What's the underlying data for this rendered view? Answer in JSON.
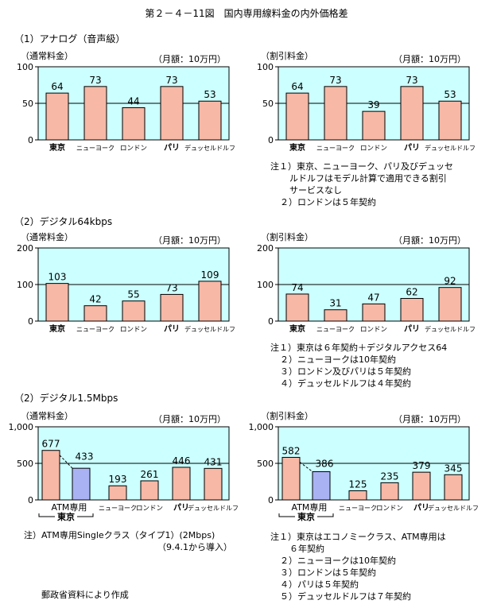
{
  "page_title": "第２－４－11図　国内専用線料金の内外価格差",
  "section_labels": [
    "（1）アナログ（音声級）",
    "（2）デジタル64kbps",
    "（2）デジタル1.5Mbps"
  ],
  "atm_label": "ATM専用",
  "atm_group_label": "東京",
  "source": "郵政省資料により作成",
  "colors": {
    "bar": "#f7b8a6",
    "atm_bar": "#a9b3f4",
    "plot_bg": "#ccffff",
    "line": "#000000"
  },
  "notes": {
    "analog_discount": [
      "注１）東京、ニューヨーク、パリ及びデュッセ",
      "ルドルフはモデル計算で適用できる割引",
      "サービスなし",
      "２）ロンドンは５年契約"
    ],
    "d64_discount": [
      "注１）東京は６年契約＋デジタルアクセス64",
      "２）ニューヨークは10年契約",
      "３）ロンドン及びパリは５年契約",
      "４）デュッセルドルフは４年契約"
    ],
    "d15_regular": [
      "注）ATM専用Singleクラス（タイプ1）(2Mbps)",
      "（9.4.1から導入）"
    ],
    "d15_discount": [
      "注１）東京はエコノミークラス、ATM専用は",
      "６年契約",
      "２）ニューヨークは10年契約",
      "３）ロンドンは５年契約",
      "４）パリは５年契約",
      "５）デュッセルドルフは７年契約"
    ]
  },
  "chart_data": [
    {
      "type": "bar",
      "label": "（通常料金）",
      "unit": "（月額：10万円）",
      "categories": [
        "東京",
        "ニューヨーク",
        "ロンドン",
        "パリ",
        "デュッセルドルフ"
      ],
      "values": [
        64,
        73,
        44,
        73,
        53
      ],
      "ylim": [
        0,
        100
      ],
      "yticks": [
        "0",
        "50",
        "100"
      ],
      "ytick_values": [
        0,
        50,
        100
      ],
      "hline": 50
    },
    {
      "type": "bar",
      "label": "（割引料金）",
      "unit": "（月額：10万円）",
      "categories": [
        "東京",
        "ニューヨーク",
        "ロンドン",
        "パリ",
        "デュッセルドルフ"
      ],
      "values": [
        64,
        73,
        39,
        73,
        53
      ],
      "ylim": [
        0,
        100
      ],
      "yticks": [
        "0",
        "50",
        "100"
      ],
      "ytick_values": [
        0,
        50,
        100
      ],
      "hline": 50
    },
    {
      "type": "bar",
      "label": "（通常料金）",
      "unit": "（月額：10万円）",
      "categories": [
        "東京",
        "ニューヨーク",
        "ロンドン",
        "パリ",
        "デュッセルドルフ"
      ],
      "values": [
        103,
        42,
        55,
        73,
        109
      ],
      "ylim": [
        0,
        200
      ],
      "yticks": [
        "0",
        "100",
        "200"
      ],
      "ytick_values": [
        0,
        100,
        200
      ],
      "hline": 100
    },
    {
      "type": "bar",
      "label": "（割引料金）",
      "unit": "（月額：10万円）",
      "categories": [
        "東京",
        "ニューヨーク",
        "ロンドン",
        "パリ",
        "デュッセルドルフ"
      ],
      "values": [
        74,
        31,
        47,
        62,
        92
      ],
      "ylim": [
        0,
        200
      ],
      "yticks": [
        "0",
        "100",
        "200"
      ],
      "ytick_values": [
        0,
        100,
        200
      ],
      "hline": 100
    },
    {
      "type": "bar",
      "label": "（通常料金）",
      "unit": "（月額：10万円）",
      "categories": [
        "東京",
        "ATM専用",
        "ニューヨーク",
        "ロンドン",
        "パリ",
        "デュッセルドルフ"
      ],
      "values": [
        677,
        433,
        193,
        261,
        446,
        431
      ],
      "ylim": [
        0,
        1000
      ],
      "yticks": [
        "0",
        "500",
        "1,000"
      ],
      "ytick_values": [
        0,
        500,
        1000
      ],
      "hline": 500,
      "atm_index": 1
    },
    {
      "type": "bar",
      "label": "（割引料金）",
      "unit": "（月額：10万円）",
      "categories": [
        "東京",
        "ATM専用",
        "ニューヨーク",
        "ロンドン",
        "パリ",
        "デュッセルドルフ"
      ],
      "values": [
        582,
        386,
        125,
        235,
        379,
        345
      ],
      "ylim": [
        0,
        1000
      ],
      "yticks": [
        "0",
        "500",
        "1,000"
      ],
      "ytick_values": [
        0,
        500,
        1000
      ],
      "hline": 500,
      "atm_index": 1
    }
  ]
}
